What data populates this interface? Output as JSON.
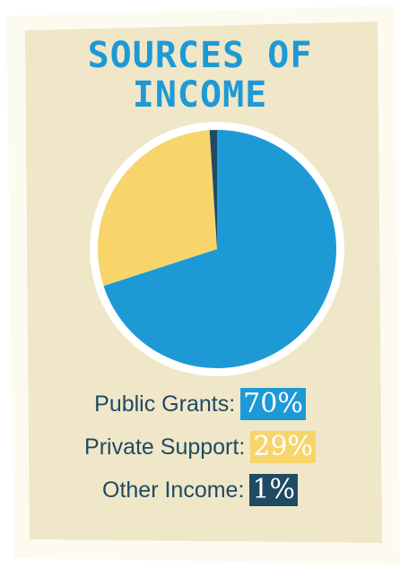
{
  "colors": {
    "card": "#f0e6c8",
    "border": "#fdfaf0",
    "title": "#1d9ad6",
    "text": "#1f4a63",
    "public": "#1d9ad6",
    "private": "#f7d56b",
    "other": "#1f4a63"
  },
  "chart_data": {
    "type": "pie",
    "title": "SOURCES OF INCOME",
    "title_lines": [
      "SOURCES OF",
      "INCOME"
    ],
    "slices": [
      {
        "label": "Public Grants",
        "value": 70,
        "display": "70%",
        "color": "#1d9ad6",
        "text_color": "#ffffff"
      },
      {
        "label": "Private Support",
        "value": 29,
        "display": "29%",
        "color": "#f7d56b",
        "text_color": "#ffffff"
      },
      {
        "label": "Other Income",
        "value": 1,
        "display": "1%",
        "color": "#1f4a63",
        "text_color": "#ffffff"
      }
    ],
    "legend": [
      {
        "label": "Public Grants:",
        "value": "70%"
      },
      {
        "label": "Private Support:",
        "value": "29%"
      },
      {
        "label": "Other Income:",
        "value": "1%"
      }
    ]
  }
}
